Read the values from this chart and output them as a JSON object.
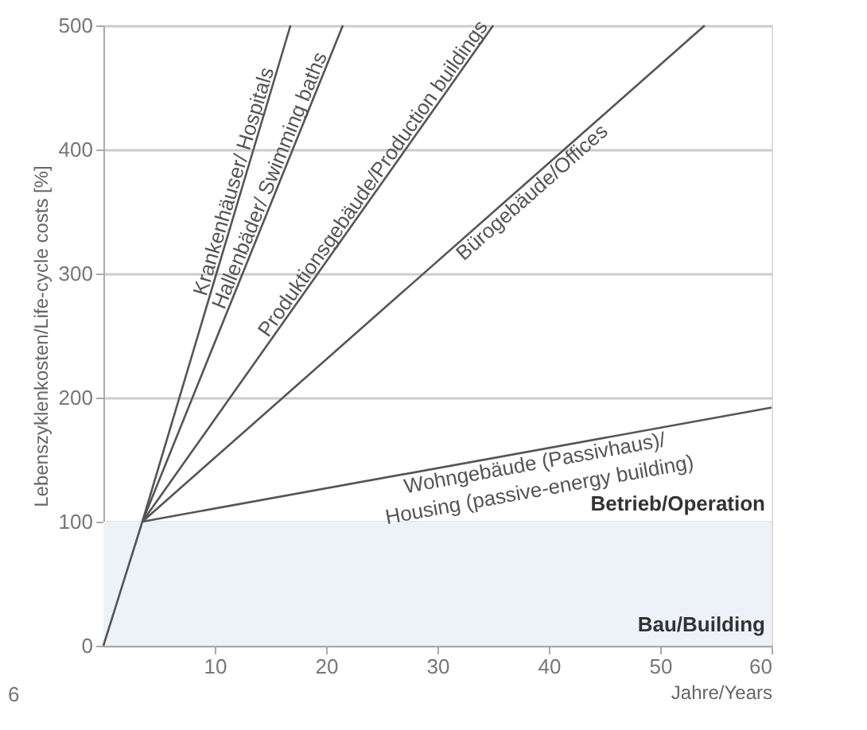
{
  "chart_data": {
    "type": "line",
    "xlabel": "Jahre/Years",
    "ylabel": "Lebenszyklenkosten/Life-cycle costs [%]",
    "xlim": [
      0,
      60
    ],
    "xticks": [
      10,
      20,
      30,
      40,
      50,
      60
    ],
    "ylim": [
      0,
      500
    ],
    "yticks": [
      0,
      100,
      200,
      300,
      400,
      500
    ],
    "grid": "y",
    "line_style": "solid",
    "marker": "none",
    "series": [
      {
        "name": "Krankenhäuser/ Hospitals",
        "color": "#555555",
        "x": [
          0,
          3.5,
          16.8
        ],
        "values": [
          0,
          100,
          500
        ]
      },
      {
        "name": "Hallenbäder/ Swimming baths",
        "color": "#555555",
        "x": [
          3.5,
          21.5
        ],
        "values": [
          100,
          500
        ]
      },
      {
        "name": "Produktionsgebäude/Production buildings",
        "color": "#555555",
        "x": [
          3.5,
          35
        ],
        "values": [
          100,
          500
        ]
      },
      {
        "name": "Bürogebäude/Offices",
        "color": "#555555",
        "x": [
          3.5,
          54
        ],
        "values": [
          100,
          500
        ]
      },
      {
        "name": "Wohngebäude (Passivhaus)/\nHousing (passive-energy building)",
        "color": "#555555",
        "x": [
          3.5,
          60
        ],
        "values": [
          100,
          192
        ]
      }
    ],
    "bands": [
      {
        "axis": "y",
        "from": 0,
        "to": 100,
        "label": "Bau/Building",
        "color": "#edf2f9"
      }
    ],
    "annotations": [
      {
        "text": "Betrieb/Operation",
        "x": 60,
        "y": 100
      },
      "6"
    ]
  }
}
